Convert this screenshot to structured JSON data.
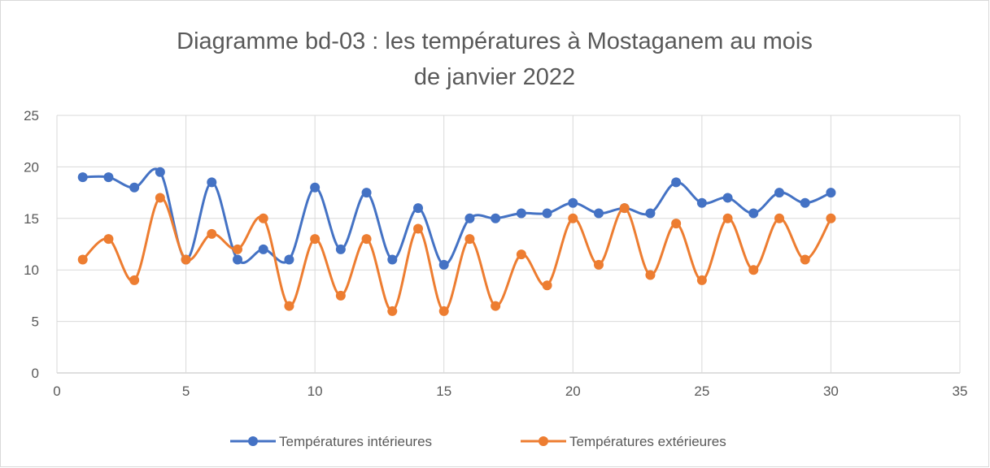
{
  "chart_data": {
    "type": "line",
    "title": [
      "Diagramme bd-03 : les températures à Mostaganem au mois",
      "de janvier 2022"
    ],
    "x": [
      1,
      2,
      3,
      4,
      5,
      6,
      7,
      8,
      9,
      10,
      11,
      12,
      13,
      14,
      15,
      16,
      17,
      18,
      19,
      20,
      21,
      22,
      23,
      24,
      25,
      26,
      27,
      28,
      29,
      30
    ],
    "series": [
      {
        "name": "Températures intérieures",
        "color": "#4472c4",
        "values": [
          19,
          19,
          18,
          19.5,
          11,
          18.5,
          11,
          12,
          11,
          18,
          12,
          17.5,
          11,
          16,
          10.5,
          15,
          15,
          15.5,
          15.5,
          16.5,
          15.5,
          16,
          15.5,
          18.5,
          16.5,
          17,
          15.5,
          17.5,
          16.5,
          17.5
        ]
      },
      {
        "name": "Températures extérieures",
        "color": "#ed7d31",
        "values": [
          11,
          13,
          9,
          17,
          11,
          13.5,
          12,
          15,
          6.5,
          13,
          7.5,
          13,
          6,
          14,
          6,
          13,
          6.5,
          11.5,
          8.5,
          15,
          10.5,
          16,
          9.5,
          14.5,
          9,
          15,
          10,
          15,
          11,
          15
        ]
      }
    ],
    "xlim": [
      0,
      35
    ],
    "xticks": [
      0,
      5,
      10,
      15,
      20,
      25,
      30,
      35
    ],
    "ylim": [
      0,
      25
    ],
    "yticks": [
      0,
      5,
      10,
      15,
      20,
      25
    ],
    "grid": true,
    "smooth": true,
    "legend": "bottom"
  }
}
